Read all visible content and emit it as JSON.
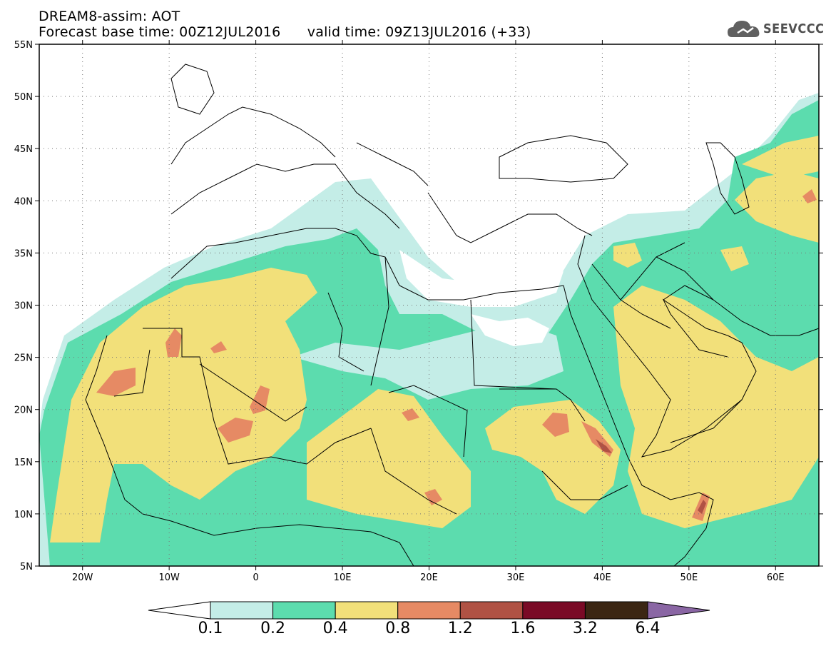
{
  "title": {
    "line1": "DREAM8-assim: AOT",
    "line2": "Forecast base time: 00Z12JUL2016      valid time: 09Z13JUL2016 (+33)"
  },
  "logo": {
    "text": "SEEVCCC",
    "icon": "cloud-icon"
  },
  "map": {
    "lon_range": [
      -25,
      65
    ],
    "lat_range": [
      5,
      55
    ],
    "lat_ticks": [
      {
        "value": 55,
        "label": "55N"
      },
      {
        "value": 50,
        "label": "50N"
      },
      {
        "value": 45,
        "label": "45N"
      },
      {
        "value": 40,
        "label": "40N"
      },
      {
        "value": 35,
        "label": "35N"
      },
      {
        "value": 30,
        "label": "30N"
      },
      {
        "value": 25,
        "label": "25N"
      },
      {
        "value": 20,
        "label": "20N"
      },
      {
        "value": 15,
        "label": "15N"
      },
      {
        "value": 10,
        "label": "10N"
      },
      {
        "value": 5,
        "label": "5N"
      }
    ],
    "lon_ticks": [
      {
        "value": -20,
        "label": "20W"
      },
      {
        "value": -10,
        "label": "10W"
      },
      {
        "value": 0,
        "label": "0"
      },
      {
        "value": 10,
        "label": "10E"
      },
      {
        "value": 20,
        "label": "20E"
      },
      {
        "value": 30,
        "label": "30E"
      },
      {
        "value": 40,
        "label": "40E"
      },
      {
        "value": 50,
        "label": "50E"
      },
      {
        "value": 60,
        "label": "60E"
      }
    ],
    "grid": "dotted"
  },
  "colorbar": {
    "labels": [
      "0.1",
      "0.2",
      "0.4",
      "0.8",
      "1.2",
      "1.6",
      "3.2",
      "6.4"
    ],
    "colors": [
      "#ffffff",
      "#c4ede7",
      "#5cdcae",
      "#f2e07a",
      "#e68a64",
      "#b05244",
      "#7a0a26",
      "#3b2613",
      "#8a66a4"
    ]
  },
  "chart_data": {
    "type": "heatmap",
    "variable": "AOT",
    "levels": [
      0.1,
      0.2,
      0.4,
      0.8,
      1.2,
      1.6,
      3.2,
      6.4
    ],
    "xlim": [
      -25,
      65
    ],
    "ylim": [
      5,
      55
    ],
    "colors": [
      "#c4ede7",
      "#5cdcae",
      "#f2e07a",
      "#e68a64",
      "#b05244",
      "#7a0a26",
      "#3b2613"
    ]
  }
}
